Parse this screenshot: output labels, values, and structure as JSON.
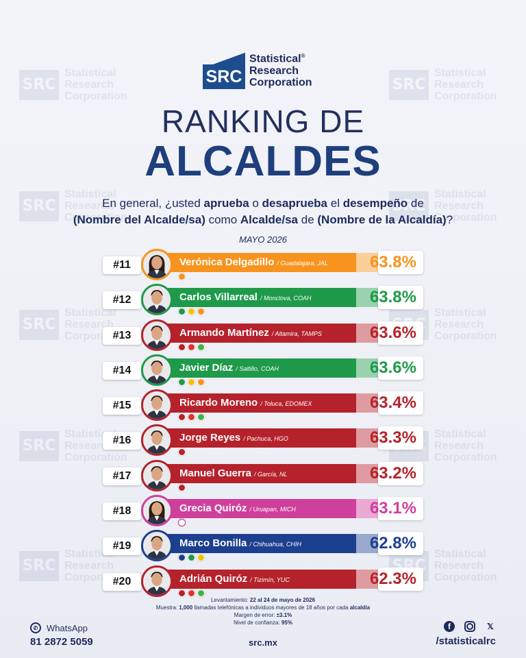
{
  "watermark": {
    "box": "SRC",
    "line1": "Statistical",
    "line2": "Research",
    "line3": "Corporation"
  },
  "logo": {
    "box": "SRC",
    "line1": "Statistical",
    "mark": "®",
    "line2": "Research",
    "line3": "Corporation"
  },
  "title": {
    "line1": "RANKING DE",
    "line2": "ALCALDES"
  },
  "question": {
    "p1": "En general, ¿usted ",
    "b1": "aprueba",
    "p2": " o ",
    "b2": "desaprueba",
    "p3": " el ",
    "b3": "desempeño",
    "p4": " de ",
    "b4": "(Nombre del Alcalde/sa)",
    "p5": " como ",
    "b5": "Alcalde/sa",
    "p6": " de ",
    "b6": "(Nombre de la Alcaldía)",
    "p7": "?"
  },
  "period": "MAYO 2026",
  "ranking": [
    {
      "rank": "#11",
      "name": "Verónica Delgadillo",
      "location": "/ Guadalajara, JAL",
      "percent": "63.8%",
      "color": "#f7931e",
      "avatar_gender": "f",
      "parties": [
        "#f7931e"
      ]
    },
    {
      "rank": "#12",
      "name": "Carlos Villarreal",
      "location": "/ Monclova, COAH",
      "color": "#1e9a4a",
      "percent": "63.8%",
      "avatar_gender": "m",
      "parties": [
        "#1e9a4a",
        "#f2c200",
        "#f7931e"
      ]
    },
    {
      "rank": "#13",
      "name": "Armando Martínez",
      "location": "/ Altamira, TAMPS",
      "color": "#b5222b",
      "percent": "63.6%",
      "avatar_gender": "m",
      "parties": [
        "#b5222b",
        "#e2322c",
        "#47b044"
      ]
    },
    {
      "rank": "#14",
      "name": "Javier Díaz",
      "location": "/ Saltillo, COAH",
      "color": "#1e9a4a",
      "percent": "63.6%",
      "avatar_gender": "m",
      "parties": [
        "#1e9a4a",
        "#f2c200",
        "#f7931e"
      ]
    },
    {
      "rank": "#15",
      "name": "Ricardo Moreno",
      "location": "/ Toluca, EDOMEX",
      "color": "#b5222b",
      "percent": "63.4%",
      "avatar_gender": "m",
      "parties": [
        "#b5222b",
        "#e2322c",
        "#47b044"
      ]
    },
    {
      "rank": "#16",
      "name": "Jorge Reyes",
      "location": "/ Pachuca, HGO",
      "color": "#b5222b",
      "percent": "63.3%",
      "avatar_gender": "m",
      "parties": [
        "#b5222b"
      ]
    },
    {
      "rank": "#17",
      "name": "Manuel Guerra",
      "location": "/ García, NL",
      "color": "#b5222b",
      "percent": "63.2%",
      "avatar_gender": "m",
      "parties": [
        "#b5222b"
      ]
    },
    {
      "rank": "#18",
      "name": "Grecia Quiróz",
      "location": "/ Uruapan, MICH",
      "color": "#cf3f9c",
      "percent": "63.1%",
      "avatar_gender": "f",
      "parties": [
        "#ffffff"
      ]
    },
    {
      "rank": "#19",
      "name": "Marco Bonilla",
      "location": "/ Chihuahua, CHIH",
      "color": "#1d3f8f",
      "percent": "62.8%",
      "avatar_gender": "m",
      "parties": [
        "#1d3f8f",
        "#1e9a4a",
        "#f2c200"
      ]
    },
    {
      "rank": "#20",
      "name": "Adrián Quiróz",
      "location": "/ Tizimín, YUC",
      "color": "#b5222b",
      "percent": "62.3%",
      "avatar_gender": "m",
      "parties": [
        "#b5222b",
        "#e2322c",
        "#47b044"
      ]
    }
  ],
  "methodology": {
    "l1_label": "Levantamiento: ",
    "l1_value": "22 al 24 de mayo de 2026",
    "l2_label": "Muestra: ",
    "l2_value": "1,000",
    "l2_text": " llamadas telefónicas a individuos mayores de 18 años por cada ",
    "l2_bold": "alcaldía",
    "l3_label": "Margen de error: ",
    "l3_value": "±3.1%",
    "l4_label": "Nivel de confianza: ",
    "l4_value": "95%"
  },
  "footer": {
    "whatsapp_label": "WhatsApp",
    "whatsapp_number": "81 2872 5059",
    "website": "src.mx",
    "social_handle": "/statisticalrc",
    "social_icons": [
      "facebook-icon",
      "instagram-icon",
      "x-icon"
    ]
  }
}
